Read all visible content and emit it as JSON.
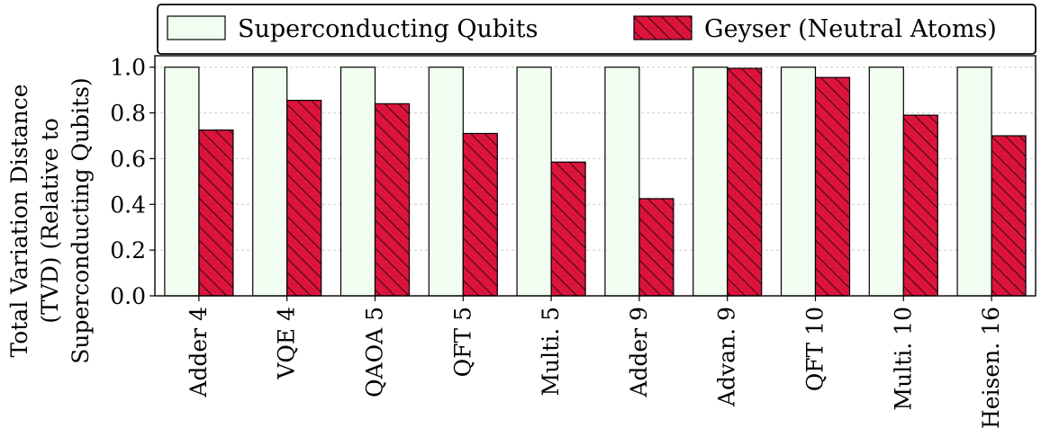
{
  "chart_data": {
    "type": "bar",
    "title": "",
    "ylabel_lines": [
      "Total Variation Distance",
      "(TVD) (Relative to",
      "Superconducting Qubits)"
    ],
    "xlabel": "",
    "categories": [
      "Adder 4",
      "VQE 4",
      "QAOA 5",
      "QFT 5",
      "Multi. 5",
      "Adder 9",
      "Advan. 9",
      "QFT 10",
      "Multi. 10",
      "Heisen. 16"
    ],
    "series": [
      {
        "name": "Superconducting Qubits",
        "values": [
          1.0,
          1.0,
          1.0,
          1.0,
          1.0,
          1.0,
          1.0,
          1.0,
          1.0,
          1.0
        ],
        "color": "#f0fdf0",
        "hatch": false
      },
      {
        "name": "Geyser (Neutral Atoms)",
        "values": [
          0.725,
          0.855,
          0.84,
          0.71,
          0.585,
          0.425,
          0.995,
          0.955,
          0.79,
          0.7
        ],
        "color": "#dc143c",
        "hatch": true
      }
    ],
    "ylim": [
      0,
      1.05
    ],
    "yticks": [
      0.0,
      0.2,
      0.4,
      0.6,
      0.8,
      1.0
    ],
    "ytick_labels": [
      "0.0",
      "0.2",
      "0.4",
      "0.6",
      "0.8",
      "1.0"
    ],
    "grid": "y-dotted",
    "legend_position": "top"
  }
}
